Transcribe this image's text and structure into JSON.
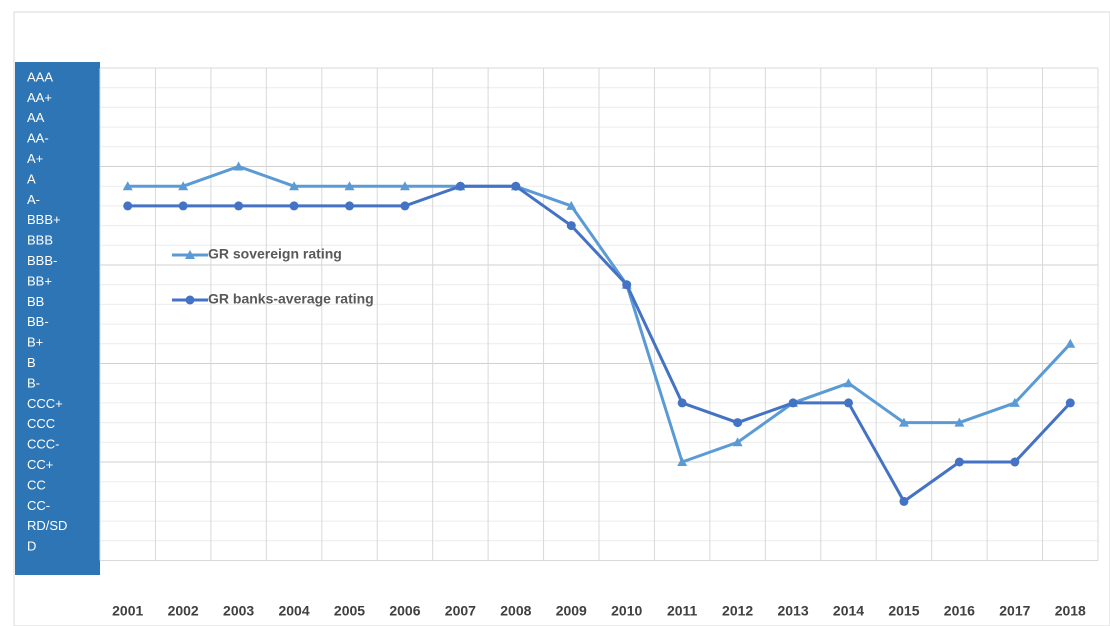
{
  "chart_data": {
    "type": "line",
    "categories": [
      "2001",
      "2002",
      "2003",
      "2004",
      "2005",
      "2006",
      "2007",
      "2008",
      "2009",
      "2010",
      "2011",
      "2012",
      "2013",
      "2014",
      "2015",
      "2016",
      "2017",
      "2018"
    ],
    "y_categories": [
      "AAA",
      "AA+",
      "AA",
      "AA-",
      "A+",
      "A",
      "A-",
      "BBB+",
      "BBB",
      "BBB-",
      "BB+",
      "BB",
      "BB-",
      "B+",
      "B",
      "B-",
      "CCC+",
      "CCC",
      "CCC-",
      "CC+",
      "CC",
      "CC-",
      "RD/SD",
      "D"
    ],
    "series": [
      {
        "name": "GR sovereign rating",
        "color": "#5B9BD5",
        "marker": "triangle",
        "values": [
          "A",
          "A",
          "A+",
          "A",
          "A",
          "A",
          "A",
          "A",
          "A-",
          "BB+",
          "CC+",
          "CCC-",
          "CCC+",
          "B-",
          "CCC",
          "CCC",
          "CCC+",
          "B+"
        ]
      },
      {
        "name": "GR banks-average rating",
        "color": "#4472C4",
        "marker": "circle",
        "values": [
          "A-",
          "A-",
          "A-",
          "A-",
          "A-",
          "A-",
          "A",
          "A",
          "BBB+",
          "BB+",
          "CCC+",
          "CCC",
          "CCC+",
          "CCC+",
          "CC-",
          "CC+",
          "CC+",
          "CCC+"
        ]
      }
    ],
    "grid": true
  }
}
